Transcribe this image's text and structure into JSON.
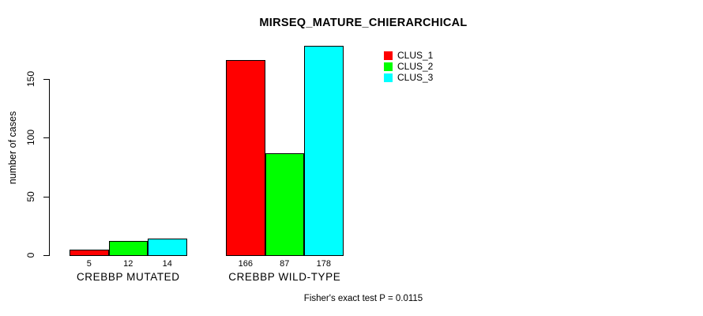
{
  "window": {
    "background": "#ffffff",
    "text_color": "#000000"
  },
  "chart_data": {
    "type": "bar",
    "title": "MIRSEQ_MATURE_CHIERARCHICAL",
    "xlabel": "",
    "ylabel": "number of cases",
    "categories": [
      "CREBBP MUTATED",
      "CREBBP WILD-TYPE"
    ],
    "series": [
      {
        "name": "CLUS_1",
        "color": "#FF0000",
        "values": [
          5,
          166
        ]
      },
      {
        "name": "CLUS_2",
        "color": "#00FF00",
        "values": [
          12,
          87
        ]
      },
      {
        "name": "CLUS_3",
        "color": "#00FFFF",
        "values": [
          14,
          178
        ]
      }
    ],
    "bar_value_labels_shown": true,
    "yticks": [
      0,
      50,
      100,
      150
    ],
    "ylim": [
      0,
      185
    ],
    "grid": false,
    "legend_position": "inside-top-right",
    "annotation": "Fisher's exact test P = 0.0115"
  }
}
